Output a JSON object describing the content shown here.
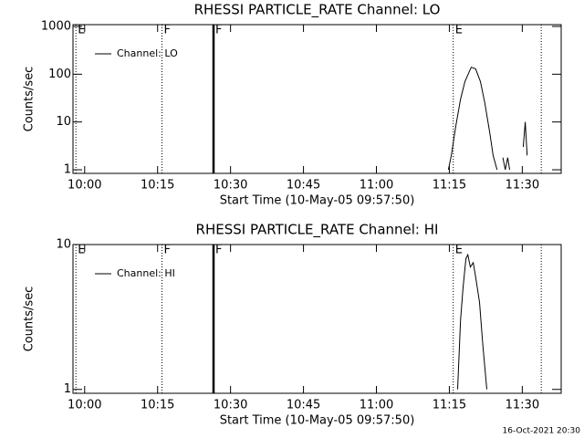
{
  "footer": "16-Oct-2021 20:30",
  "chart_data": [
    {
      "type": "line",
      "title": "RHESSI PARTICLE_RATE Channel: LO",
      "xlabel": "Start Time (10-May-05 09:57:50)",
      "ylabel": "Counts/sec",
      "log_y": true,
      "xlim": [
        597.6,
        698
      ],
      "ylim": [
        0.84,
        1090
      ],
      "xticks": [
        {
          "value": 600,
          "label": "10:00"
        },
        {
          "value": 615,
          "label": "10:15"
        },
        {
          "value": 630,
          "label": "10:30"
        },
        {
          "value": 645,
          "label": "10:45"
        },
        {
          "value": 660,
          "label": "11:00"
        },
        {
          "value": 675,
          "label": "11:15"
        },
        {
          "value": 690,
          "label": "11:30"
        }
      ],
      "yticks": [
        1,
        10,
        100,
        1000
      ],
      "flags": [
        {
          "x": 598.2,
          "label": "E",
          "style": "dotted"
        },
        {
          "x": 615.9,
          "label": "F",
          "style": "dotted"
        },
        {
          "x": 626.5,
          "label": "F",
          "style": "solid"
        },
        {
          "x": 675.8,
          "label": "E",
          "style": "dotted"
        },
        {
          "x": 693.9,
          "label": null,
          "style": "dotted"
        }
      ],
      "legend": "upper left",
      "x": [
        674.8,
        675.4,
        676.3,
        677.3,
        678.2,
        679.5,
        680.4,
        681.4,
        682.3,
        683.3,
        684.0,
        684.8,
        685.2,
        686.0,
        686.5,
        687.0,
        687.4,
        689.5,
        690.2,
        690.6,
        691.0
      ],
      "series": [
        {
          "name": "Channel: LO",
          "color": "#000000",
          "values": [
            1,
            2,
            8,
            30,
            70,
            140,
            130,
            70,
            25,
            6,
            2,
            1,
            null,
            1.8,
            1,
            1.8,
            1,
            null,
            3,
            10,
            2
          ]
        }
      ]
    },
    {
      "type": "line",
      "title": "RHESSI PARTICLE_RATE Channel: HI",
      "xlabel": "Start Time (10-May-05 09:57:50)",
      "ylabel": "Counts/sec",
      "log_y": true,
      "xlim": [
        597.6,
        698
      ],
      "ylim": [
        0.94,
        10
      ],
      "xticks": [
        {
          "value": 600,
          "label": "10:00"
        },
        {
          "value": 615,
          "label": "10:15"
        },
        {
          "value": 630,
          "label": "10:30"
        },
        {
          "value": 645,
          "label": "10:45"
        },
        {
          "value": 660,
          "label": "11:00"
        },
        {
          "value": 675,
          "label": "11:15"
        },
        {
          "value": 690,
          "label": "11:30"
        }
      ],
      "yticks": [
        1,
        10
      ],
      "flags": [
        {
          "x": 598.2,
          "label": "E",
          "style": "dotted"
        },
        {
          "x": 615.9,
          "label": "F",
          "style": "dotted"
        },
        {
          "x": 626.5,
          "label": "F",
          "style": "solid"
        },
        {
          "x": 675.8,
          "label": "E",
          "style": "dotted"
        },
        {
          "x": 693.9,
          "label": null,
          "style": "dotted"
        }
      ],
      "legend": "upper left",
      "x": [
        676.7,
        677.3,
        677.8,
        678.4,
        678.8,
        679.3,
        679.9,
        680.4,
        681.2,
        681.9,
        682.7
      ],
      "series": [
        {
          "name": "Channel: HI",
          "color": "#000000",
          "values": [
            1,
            3,
            5,
            8,
            8.5,
            7,
            7.5,
            6,
            4,
            2,
            1
          ]
        }
      ]
    }
  ]
}
